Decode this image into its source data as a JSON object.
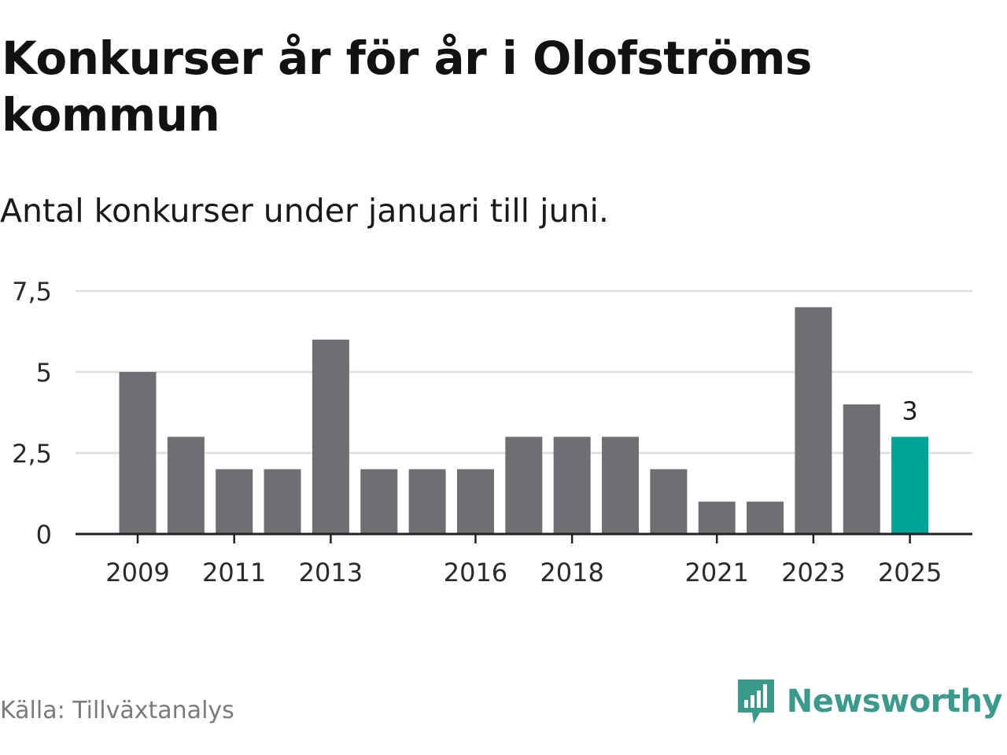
{
  "header": {
    "title": "Konkurser år för år i Olofströms kommun",
    "subtitle": "Antal konkurser under januari till juni."
  },
  "footer": {
    "source": "Källa: Tillväxtanalys",
    "brand": "Newsworthy"
  },
  "colors": {
    "bar": "#6f6e73",
    "highlight": "#00a499",
    "grid": "#dedede",
    "axis": "#222222",
    "brand": "#3a9a8c"
  },
  "chart_data": {
    "type": "bar",
    "categories": [
      "2009",
      "2010",
      "2011",
      "2012",
      "2013",
      "2014",
      "2015",
      "2016",
      "2017",
      "2018",
      "2019",
      "2020",
      "2021",
      "2022",
      "2023",
      "2024",
      "2025"
    ],
    "values": [
      5,
      3,
      2,
      2,
      6,
      2,
      2,
      2,
      3,
      3,
      3,
      2,
      1,
      1,
      7,
      4,
      3
    ],
    "x_tick_labels": [
      "2009",
      "2011",
      "2013",
      "2016",
      "2018",
      "2021",
      "2023",
      "2025"
    ],
    "y_ticks": [
      0,
      2.5,
      5,
      7.5
    ],
    "y_tick_labels": [
      "0",
      "2,5",
      "5",
      "7,5"
    ],
    "ylim": [
      0,
      7.5
    ],
    "highlight_category": "2025",
    "value_labels": [
      {
        "category": "2025",
        "text": "3"
      }
    ],
    "grid": true,
    "title": "Konkurser år för år i Olofströms kommun",
    "subtitle": "Antal konkurser under januari till juni."
  }
}
